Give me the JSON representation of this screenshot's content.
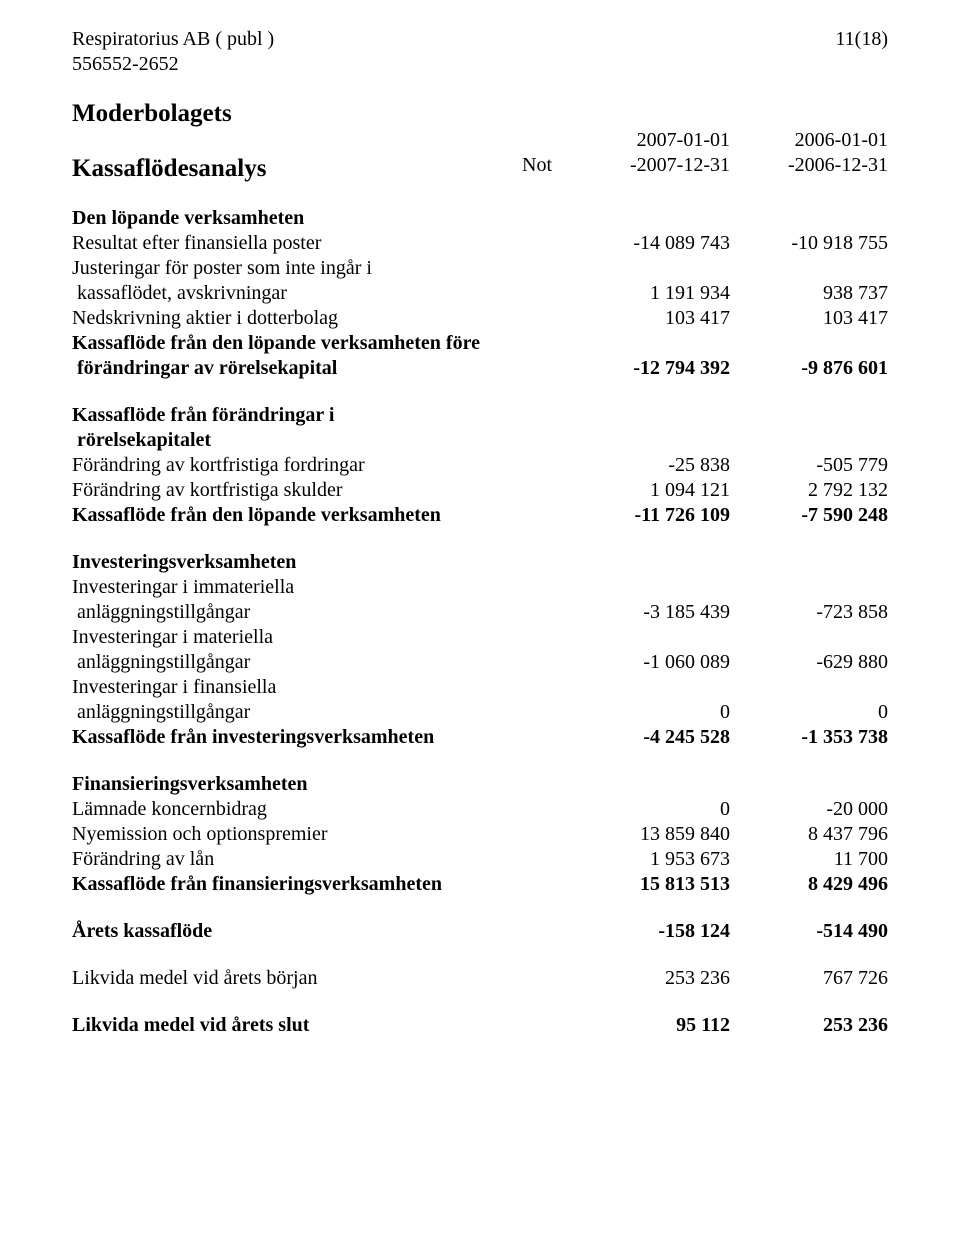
{
  "header": {
    "company": "Respiratorius AB ( publ )",
    "orgNumber": "556552-2652",
    "pageIndicator": "11(18)"
  },
  "title": "Moderbolagets",
  "subtitleRow": {
    "label": "Kassaflödesanalys",
    "noteHeader": "Not",
    "col1Top": "2007-01-01",
    "col1Bot": "-2007-12-31",
    "col2Top": "2006-01-01",
    "col2Bot": "-2006-12-31"
  },
  "sections": {
    "operating": {
      "heading": "Den löpande verksamheten",
      "rows": [
        {
          "label": "Resultat efter finansiella poster",
          "c1": "-14 089 743",
          "c2": "-10 918 755"
        },
        {
          "label": "Justeringar för poster som inte ingår i",
          "c1": "",
          "c2": ""
        },
        {
          "label": " kassaflödet, avskrivningar",
          "c1": "1 191 934",
          "c2": "938 737"
        },
        {
          "label": "Nedskrivning aktier i dotterbolag",
          "c1": "103 417",
          "c2": "103 417"
        }
      ],
      "subtotal1a": "Kassaflöde från den löpande verksamheten före",
      "subtotal1b": " förändringar av rörelsekapital",
      "subtotal1c1": "-12 794 392",
      "subtotal1c2": "-9 876 601",
      "heading2a": "Kassaflöde från förändringar i",
      "heading2b": " rörelsekapitalet",
      "rows2": [
        {
          "label": "Förändring av kortfristiga fordringar",
          "c1": "-25 838",
          "c2": "-505 779"
        },
        {
          "label": "Förändring av kortfristiga skulder",
          "c1": "1 094 121",
          "c2": "2 792 132"
        }
      ],
      "total": {
        "label": "Kassaflöde från den löpande verksamheten",
        "c1": "-11 726 109",
        "c2": "-7 590 248"
      }
    },
    "investing": {
      "heading": "Investeringsverksamheten",
      "rows": [
        {
          "labelA": "Investeringar i immateriella",
          "labelB": " anläggningstillgångar",
          "c1": "-3 185 439",
          "c2": "-723 858"
        },
        {
          "labelA": "Investeringar i materiella",
          "labelB": " anläggningstillgångar",
          "c1": "-1 060 089",
          "c2": "-629 880"
        },
        {
          "labelA": "Investeringar i finansiella",
          "labelB": " anläggningstillgångar",
          "c1": "0",
          "c2": "0"
        }
      ],
      "total": {
        "label": "Kassaflöde från investeringsverksamheten",
        "c1": "-4 245 528",
        "c2": "-1 353 738"
      }
    },
    "financing": {
      "heading": "Finansieringsverksamheten",
      "rows": [
        {
          "label": "Lämnade koncernbidrag",
          "c1": "0",
          "c2": "-20 000"
        },
        {
          "label": "Nyemission och optionspremier",
          "c1": "13 859 840",
          "c2": "8 437 796"
        },
        {
          "label": "Förändring av lån",
          "c1": "1 953 673",
          "c2": "11 700"
        }
      ],
      "total": {
        "label": "Kassaflöde från finansieringsverksamheten",
        "c1": "15 813 513",
        "c2": "8 429 496"
      }
    },
    "netChange": {
      "label": "Årets kassaflöde",
      "c1": "-158 124",
      "c2": "-514 490"
    },
    "opening": {
      "label": "Likvida medel vid årets början",
      "c1": "253 236",
      "c2": "767 726"
    },
    "closing": {
      "label": "Likvida medel vid årets slut",
      "c1": "95 112",
      "c2": "253 236"
    }
  }
}
